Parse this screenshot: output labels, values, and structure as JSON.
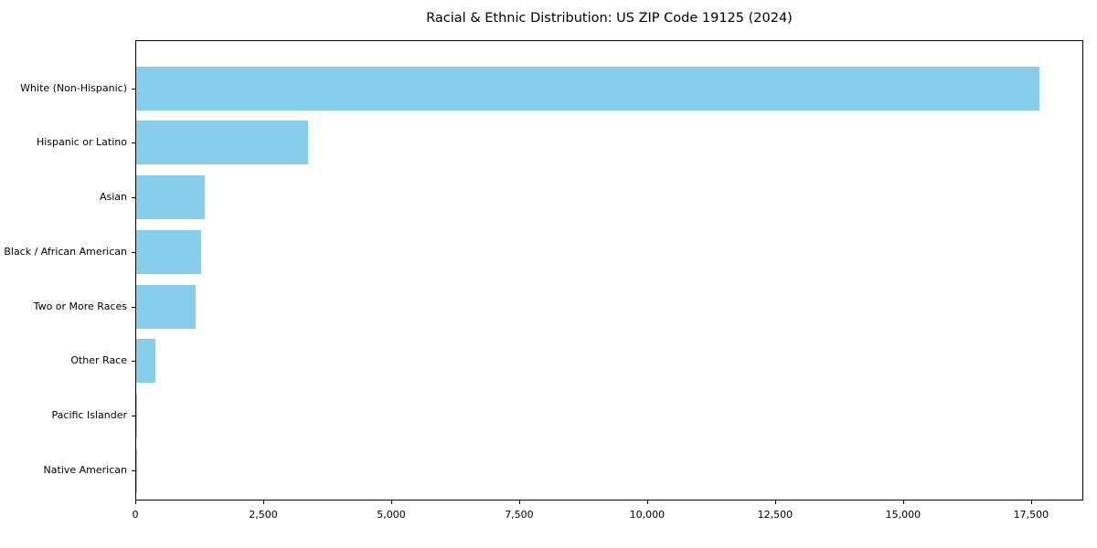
{
  "chart_data": {
    "type": "bar",
    "orientation": "horizontal",
    "title": "Racial & Ethnic Distribution: US ZIP Code 19125 (2024)",
    "categories": [
      "White (Non-Hispanic)",
      "Hispanic or Latino",
      "Asian",
      "Black / African American",
      "Two or More Races",
      "Other Race",
      "Pacific Islander",
      "Native American"
    ],
    "values": [
      17650,
      3360,
      1340,
      1270,
      1160,
      380,
      15,
      5
    ],
    "xlabel": "",
    "ylabel": "",
    "xlim": [
      0,
      18520
    ],
    "x_ticks": [
      0,
      2500,
      5000,
      7500,
      10000,
      12500,
      15000,
      17500
    ],
    "x_tick_labels": [
      "0",
      "2,500",
      "5,000",
      "7,500",
      "10,000",
      "12,500",
      "15,000",
      "17,500"
    ],
    "bar_color": "#87CEEB",
    "axis_color": "#000000",
    "background_color": "#FFFFFF",
    "grid": false,
    "legend": false
  }
}
